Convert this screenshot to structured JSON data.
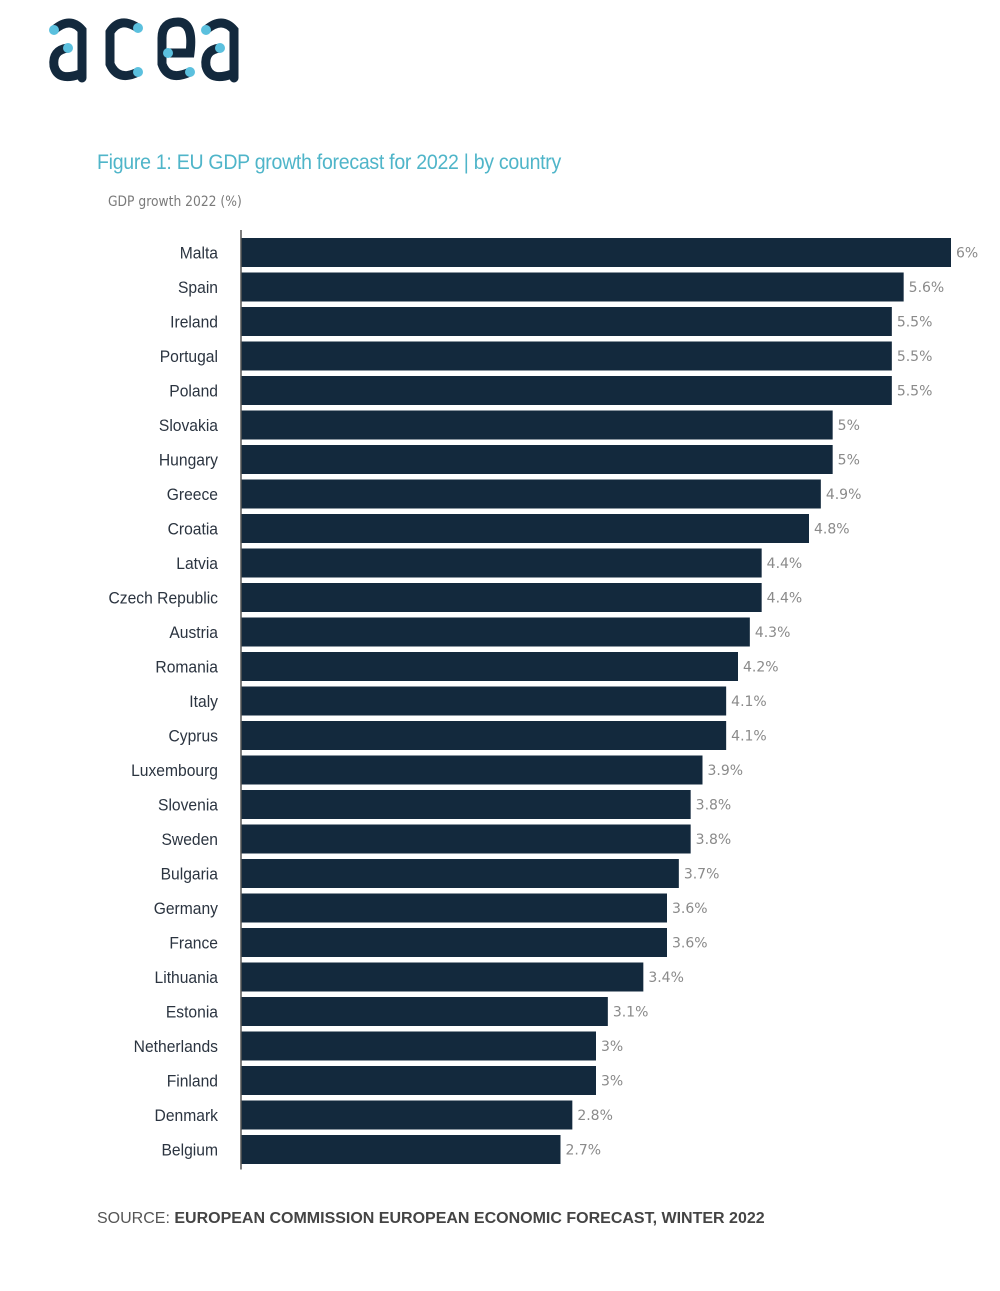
{
  "brand": {
    "logo_text": "acea",
    "logo_color": "#13293d",
    "accent_color": "#5bc0de"
  },
  "chart_data": {
    "type": "bar",
    "orientation": "horizontal",
    "title": "Figure 1: EU GDP growth forecast for 2022 | by country",
    "xlabel": "",
    "ylabel": "GDP growth 2022 (%)",
    "categories": [
      "Malta",
      "Spain",
      "Ireland",
      "Portugal",
      "Poland",
      "Slovakia",
      "Hungary",
      "Greece",
      "Croatia",
      "Latvia",
      "Czech Republic",
      "Austria",
      "Romania",
      "Italy",
      "Cyprus",
      "Luxembourg",
      "Slovenia",
      "Sweden",
      "Bulgaria",
      "Germany",
      "France",
      "Lithuania",
      "Estonia",
      "Netherlands",
      "Finland",
      "Denmark",
      "Belgium"
    ],
    "values": [
      6,
      5.6,
      5.5,
      5.5,
      5.5,
      5,
      5,
      4.9,
      4.8,
      4.4,
      4.4,
      4.3,
      4.2,
      4.1,
      4.1,
      3.9,
      3.8,
      3.8,
      3.7,
      3.6,
      3.6,
      3.4,
      3.1,
      3,
      3,
      2.8,
      2.7
    ],
    "data_labels": [
      "6%",
      "5.6%",
      "5.5%",
      "5.5%",
      "5.5%",
      "5%",
      "5%",
      "4.9%",
      "4.8%",
      "4.4%",
      "4.4%",
      "4.3%",
      "4.2%",
      "4.1%",
      "4.1%",
      "3.9%",
      "3.8%",
      "3.8%",
      "3.7%",
      "3.6%",
      "3.6%",
      "3.4%",
      "3.1%",
      "3%",
      "3%",
      "2.8%",
      "2.7%"
    ],
    "xlim": [
      0,
      6
    ],
    "grid": false,
    "legend": "none",
    "bar_color": "#13293d",
    "label_color": "#8a8a8a",
    "category_color": "#2b3440"
  },
  "source": {
    "prefix": "SOURCE: ",
    "text": "EUROPEAN COMMISSION EUROPEAN ECONOMIC FORECAST, WINTER 2022"
  }
}
